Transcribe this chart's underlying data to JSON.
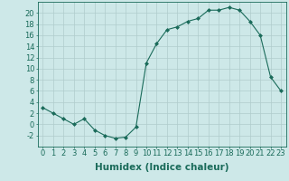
{
  "x": [
    0,
    1,
    2,
    3,
    4,
    5,
    6,
    7,
    8,
    9,
    10,
    11,
    12,
    13,
    14,
    15,
    16,
    17,
    18,
    19,
    20,
    21,
    22,
    23
  ],
  "y": [
    3,
    2,
    1,
    0,
    1,
    -1,
    -2,
    -2.5,
    -2.3,
    -0.5,
    11,
    14.5,
    17,
    17.5,
    18.5,
    19,
    20.5,
    20.5,
    21,
    20.5,
    18.5,
    16,
    8.5,
    6
  ],
  "line_color": "#1a6b5a",
  "marker": "D",
  "marker_size": 2.0,
  "bg_color": "#cde8e8",
  "grid_color": "#b0cccc",
  "xlabel": "Humidex (Indice chaleur)",
  "ylim": [
    -4,
    22
  ],
  "xlim": [
    -0.5,
    23.5
  ],
  "yticks": [
    -2,
    0,
    2,
    4,
    6,
    8,
    10,
    12,
    14,
    16,
    18,
    20
  ],
  "xticks": [
    0,
    1,
    2,
    3,
    4,
    5,
    6,
    7,
    8,
    9,
    10,
    11,
    12,
    13,
    14,
    15,
    16,
    17,
    18,
    19,
    20,
    21,
    22,
    23
  ],
  "tick_labelsize": 6.0,
  "xlabel_fontsize": 7.5,
  "xlabel_fontweight": "bold",
  "linewidth": 0.8
}
